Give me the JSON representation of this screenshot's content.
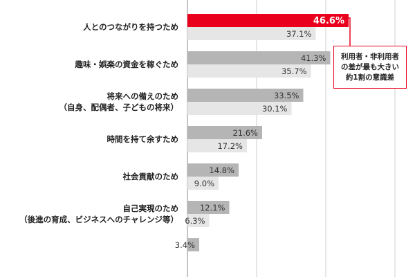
{
  "chart_data": {
    "type": "bar",
    "orientation": "horizontal",
    "categories": [
      [
        "人とのつながりを持つため"
      ],
      [
        "趣味・娯楽の資金を稼ぐため"
      ],
      [
        "将来への備えのため",
        "（自身、配偶者、子どもの将来）"
      ],
      [
        "時間を持て余すため"
      ],
      [
        "社会貢献のため"
      ],
      [
        "自己実現のため",
        "（後進の育成、ビジネスへのチャレンジ等）"
      ],
      [
        ""
      ]
    ],
    "series": [
      {
        "values": [
          46.6,
          41.3,
          33.5,
          21.6,
          14.8,
          12.1,
          3.4
        ],
        "labels": [
          "46.6%",
          "41.3%",
          "33.5%",
          "21.6%",
          "14.8%",
          "12.1%",
          "3.4%"
        ]
      },
      {
        "values": [
          37.1,
          35.7,
          30.1,
          17.2,
          9.0,
          6.3,
          null
        ],
        "labels": [
          "37.1%",
          "35.7%",
          "30.1%",
          "17.2%",
          "9.0%",
          "6.3%",
          ""
        ]
      }
    ],
    "highlight": {
      "series": 0,
      "index": 0
    },
    "xlim": [
      0,
      60
    ],
    "grid": true,
    "colors": {
      "series1": "#b5b5b5",
      "series2": "#e6e6e6",
      "highlight": "#e8001c",
      "grid": "#cccccc"
    }
  },
  "callout": {
    "lines": [
      "利用者・非利用者",
      "の差が最も大きい",
      "約1割の意識差"
    ]
  }
}
